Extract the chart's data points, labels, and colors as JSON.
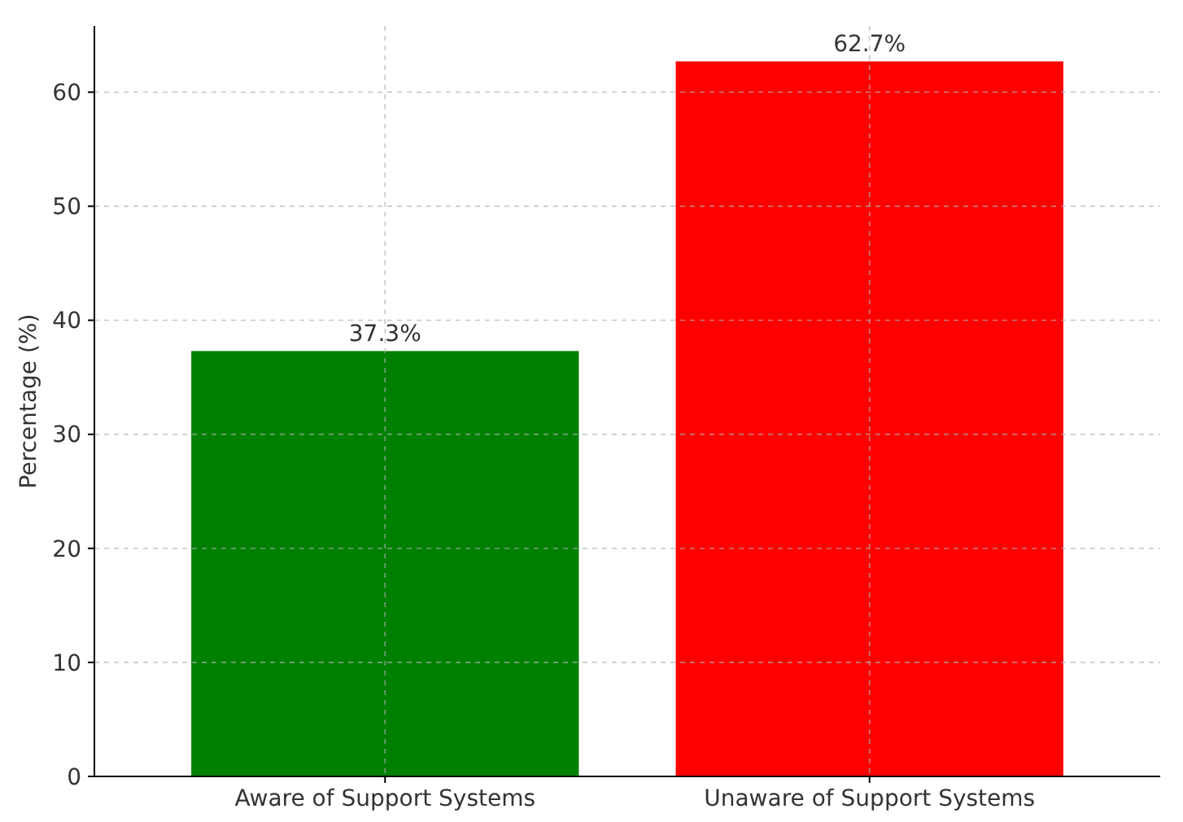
{
  "chart_data": {
    "type": "bar",
    "ylabel": "Percentage (%)",
    "categories": [
      "Aware of Support Systems",
      "Unaware of Support Systems"
    ],
    "values": [
      37.3,
      62.7
    ],
    "colors": [
      "#008000",
      "#ff0000"
    ],
    "value_labels": [
      "37.3%",
      "62.7%"
    ],
    "ylim": [
      0,
      65.8
    ],
    "yticks": [
      0,
      10,
      20,
      30,
      40,
      50,
      60
    ],
    "grid": true
  }
}
